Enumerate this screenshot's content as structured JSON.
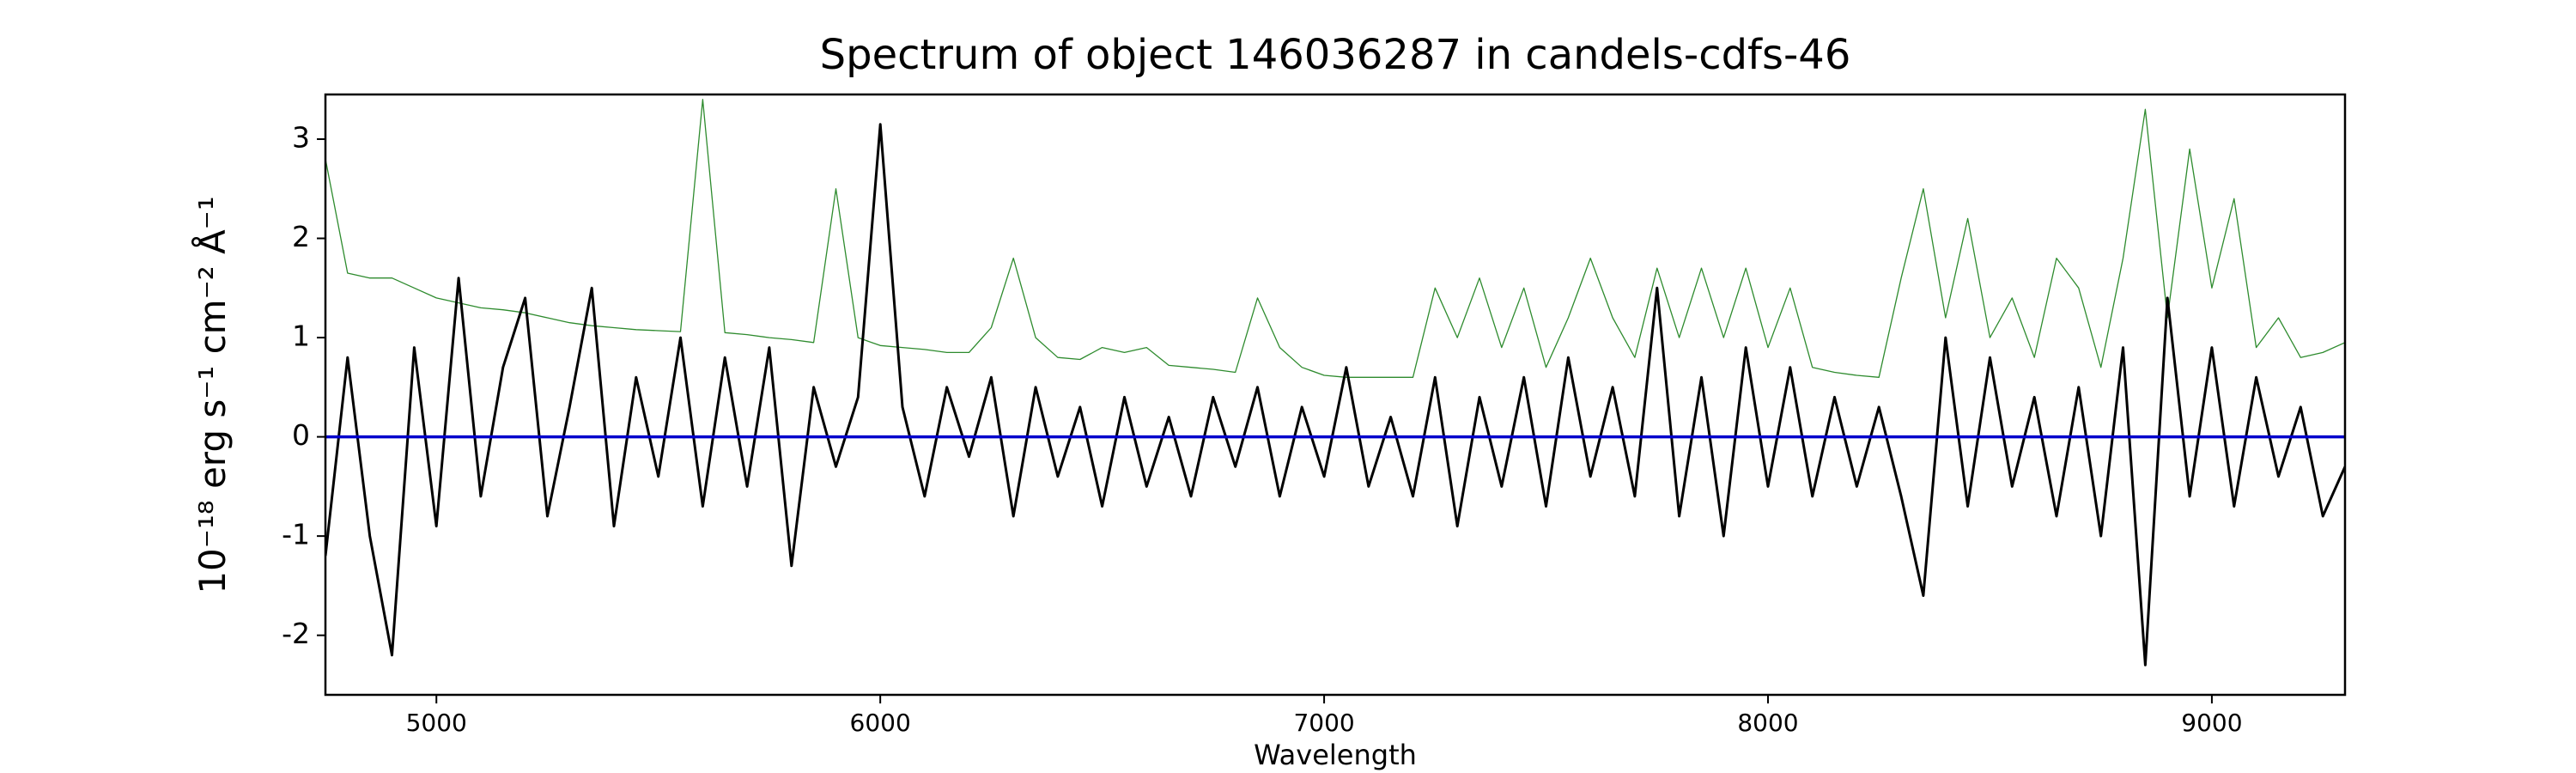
{
  "chart_data": {
    "type": "line",
    "title": "Spectrum of object 146036287 in candels-cdfs-46",
    "x_label": "Wavelength",
    "y_label": "10⁻¹⁸ erg s⁻¹ cm⁻² Å⁻¹",
    "xlim": [
      4750,
      9300
    ],
    "xticks": [
      5000,
      6000,
      7000,
      8000,
      9000
    ],
    "ylim": [
      -2.6,
      3.45
    ],
    "yticks": [
      -2,
      -1,
      0,
      1,
      2,
      3
    ],
    "x": [
      4750,
      4800,
      4850,
      4900,
      4950,
      5000,
      5050,
      5100,
      5150,
      5200,
      5250,
      5300,
      5350,
      5400,
      5450,
      5500,
      5550,
      5600,
      5650,
      5700,
      5750,
      5800,
      5850,
      5900,
      5950,
      6000,
      6050,
      6100,
      6150,
      6200,
      6250,
      6300,
      6350,
      6400,
      6450,
      6500,
      6550,
      6600,
      6650,
      6700,
      6750,
      6800,
      6850,
      6900,
      6950,
      7000,
      7050,
      7100,
      7150,
      7200,
      7250,
      7300,
      7350,
      7400,
      7450,
      7500,
      7550,
      7600,
      7650,
      7700,
      7750,
      7800,
      7850,
      7900,
      7950,
      8000,
      8050,
      8100,
      8150,
      8200,
      8250,
      8300,
      8350,
      8400,
      8450,
      8500,
      8550,
      8600,
      8650,
      8700,
      8750,
      8800,
      8850,
      8900,
      8950,
      9000,
      9050,
      9100,
      9150,
      9200,
      9250,
      9300
    ],
    "series": [
      {
        "color": "#2e8b2e",
        "values": [
          2.8,
          1.65,
          1.6,
          1.6,
          1.5,
          1.4,
          1.35,
          1.3,
          1.28,
          1.25,
          1.2,
          1.15,
          1.12,
          1.1,
          1.08,
          1.07,
          1.06,
          3.4,
          1.05,
          1.03,
          1.0,
          0.98,
          0.95,
          2.5,
          1.0,
          0.92,
          0.9,
          0.88,
          0.85,
          0.85,
          1.1,
          1.8,
          1.0,
          0.8,
          0.78,
          0.9,
          0.85,
          0.9,
          0.72,
          0.7,
          0.68,
          0.65,
          1.4,
          0.9,
          0.7,
          0.62,
          0.6,
          0.6,
          0.6,
          0.6,
          1.5,
          1.0,
          1.6,
          0.9,
          1.5,
          0.7,
          1.2,
          1.8,
          1.2,
          0.8,
          1.7,
          1.0,
          1.7,
          1.0,
          1.7,
          0.9,
          1.5,
          0.7,
          0.65,
          0.62,
          0.6,
          1.6,
          2.5,
          1.2,
          2.2,
          1.0,
          1.4,
          0.8,
          1.8,
          1.5,
          0.7,
          1.8,
          3.3,
          1.2,
          2.9,
          1.5,
          2.4,
          0.9,
          1.2,
          0.8,
          0.85,
          0.95
        ]
      },
      {
        "color": "#000000",
        "values": [
          -1.2,
          0.8,
          -1.0,
          -2.2,
          0.9,
          -0.9,
          1.6,
          -0.6,
          0.7,
          1.4,
          -0.8,
          0.3,
          1.5,
          -0.9,
          0.6,
          -0.4,
          1.0,
          -0.7,
          0.8,
          -0.5,
          0.9,
          -1.3,
          0.5,
          -0.3,
          0.4,
          3.15,
          0.3,
          -0.6,
          0.5,
          -0.2,
          0.6,
          -0.8,
          0.5,
          -0.4,
          0.3,
          -0.7,
          0.4,
          -0.5,
          0.2,
          -0.6,
          0.4,
          -0.3,
          0.5,
          -0.6,
          0.3,
          -0.4,
          0.7,
          -0.5,
          0.2,
          -0.6,
          0.6,
          -0.9,
          0.4,
          -0.5,
          0.6,
          -0.7,
          0.8,
          -0.4,
          0.5,
          -0.6,
          1.5,
          -0.8,
          0.6,
          -1.0,
          0.9,
          -0.5,
          0.7,
          -0.6,
          0.4,
          -0.5,
          0.3,
          -0.6,
          -1.6,
          1.0,
          -0.7,
          0.8,
          -0.5,
          0.4,
          -0.8,
          0.5,
          -1.0,
          0.9,
          -2.3,
          1.4,
          -0.6,
          0.9,
          -0.7,
          0.6,
          -0.4,
          0.3,
          -0.8,
          -0.3
        ]
      },
      {
        "color": "#0000cc",
        "values": [
          0,
          0,
          0,
          0,
          0,
          0,
          0,
          0,
          0,
          0,
          0,
          0,
          0,
          0,
          0,
          0,
          0,
          0,
          0,
          0,
          0,
          0,
          0,
          0,
          0,
          0,
          0,
          0,
          0,
          0,
          0,
          0,
          0,
          0,
          0,
          0,
          0,
          0,
          0,
          0,
          0,
          0,
          0,
          0,
          0,
          0,
          0,
          0,
          0,
          0,
          0,
          0,
          0,
          0,
          0,
          0,
          0,
          0,
          0,
          0,
          0,
          0,
          0,
          0,
          0,
          0,
          0,
          0,
          0,
          0,
          0,
          0,
          0,
          0,
          0,
          0,
          0,
          0,
          0,
          0,
          0,
          0,
          0,
          0,
          0,
          0,
          0,
          0,
          0,
          0,
          0,
          0
        ]
      }
    ]
  }
}
